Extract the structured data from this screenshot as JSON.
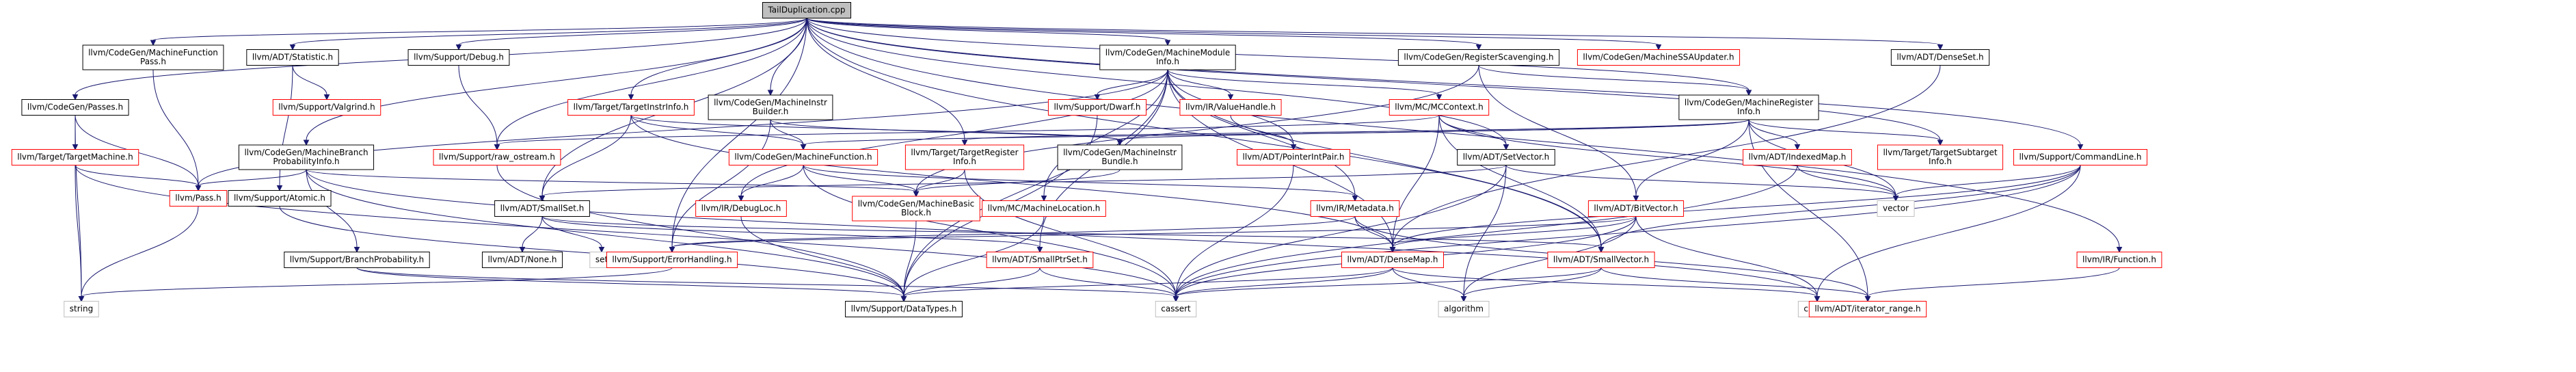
{
  "diagram": {
    "title": "TailDuplication.cpp include dependency graph",
    "colors": {
      "edge": "#191970",
      "root_fill": "#bfbfbf",
      "node_fill": "#ffffff",
      "node_border": "#000000",
      "truncated_border": "#ff0000",
      "leaf_border": "#bfbfbf",
      "text": "#000000"
    },
    "nodes": [
      {
        "id": "root",
        "lines": [
          "TailDuplication.cpp"
        ],
        "kind": "root"
      },
      {
        "id": "mfp",
        "lines": [
          "llvm/CodeGen/MachineFunction",
          "Pass.h"
        ],
        "kind": "normal"
      },
      {
        "id": "stat",
        "lines": [
          "llvm/ADT/Statistic.h"
        ],
        "kind": "normal"
      },
      {
        "id": "debug",
        "lines": [
          "llvm/Support/Debug.h"
        ],
        "kind": "normal"
      },
      {
        "id": "mmi",
        "lines": [
          "llvm/CodeGen/MachineModule",
          "Info.h"
        ],
        "kind": "normal"
      },
      {
        "id": "rs",
        "lines": [
          "llvm/CodeGen/RegisterScavenging.h"
        ],
        "kind": "normal"
      },
      {
        "id": "ssa",
        "lines": [
          "llvm/CodeGen/MachineSSAUpdater.h"
        ],
        "kind": "truncated"
      },
      {
        "id": "denseset",
        "lines": [
          "llvm/ADT/DenseSet.h"
        ],
        "kind": "normal"
      },
      {
        "id": "passes",
        "lines": [
          "llvm/CodeGen/Passes.h"
        ],
        "kind": "normal"
      },
      {
        "id": "valgrind",
        "lines": [
          "llvm/Support/Valgrind.h"
        ],
        "kind": "truncated"
      },
      {
        "id": "tii",
        "lines": [
          "llvm/Target/TargetInstrInfo.h"
        ],
        "kind": "truncated"
      },
      {
        "id": "mib",
        "lines": [
          "llvm/CodeGen/MachineInstr",
          "Builder.h"
        ],
        "kind": "normal"
      },
      {
        "id": "dwarf",
        "lines": [
          "llvm/Support/Dwarf.h"
        ],
        "kind": "truncated"
      },
      {
        "id": "valuehandle",
        "lines": [
          "llvm/IR/ValueHandle.h"
        ],
        "kind": "truncated"
      },
      {
        "id": "mccontext",
        "lines": [
          "llvm/MC/MCContext.h"
        ],
        "kind": "truncated"
      },
      {
        "id": "mri",
        "lines": [
          "llvm/CodeGen/MachineRegister",
          "Info.h"
        ],
        "kind": "normal"
      },
      {
        "id": "tm",
        "lines": [
          "llvm/Target/TargetMachine.h"
        ],
        "kind": "truncated"
      },
      {
        "id": "mbpi",
        "lines": [
          "llvm/CodeGen/MachineBranch",
          "ProbabilityInfo.h"
        ],
        "kind": "normal"
      },
      {
        "id": "rawos",
        "lines": [
          "llvm/Support/raw_ostream.h"
        ],
        "kind": "truncated"
      },
      {
        "id": "mf",
        "lines": [
          "llvm/CodeGen/MachineFunction.h"
        ],
        "kind": "truncated"
      },
      {
        "id": "tri",
        "lines": [
          "llvm/Target/TargetRegister",
          "Info.h"
        ],
        "kind": "truncated"
      },
      {
        "id": "mibundle",
        "lines": [
          "llvm/CodeGen/MachineInstr",
          "Bundle.h"
        ],
        "kind": "normal"
      },
      {
        "id": "pip",
        "lines": [
          "llvm/ADT/PointerIntPair.h"
        ],
        "kind": "truncated"
      },
      {
        "id": "setvector",
        "lines": [
          "llvm/ADT/SetVector.h"
        ],
        "kind": "normal"
      },
      {
        "id": "indexedmap",
        "lines": [
          "llvm/ADT/IndexedMap.h"
        ],
        "kind": "truncated"
      },
      {
        "id": "tsi",
        "lines": [
          "llvm/Target/TargetSubtarget",
          "Info.h"
        ],
        "kind": "truncated"
      },
      {
        "id": "cmdline",
        "lines": [
          "llvm/Support/CommandLine.h"
        ],
        "kind": "truncated"
      },
      {
        "id": "pass",
        "lines": [
          "llvm/Pass.h"
        ],
        "kind": "truncated"
      },
      {
        "id": "atomic",
        "lines": [
          "llvm/Support/Atomic.h"
        ],
        "kind": "normal"
      },
      {
        "id": "smallset",
        "lines": [
          "llvm/ADT/SmallSet.h"
        ],
        "kind": "normal"
      },
      {
        "id": "debugloc",
        "lines": [
          "llvm/IR/DebugLoc.h"
        ],
        "kind": "truncated"
      },
      {
        "id": "mbb",
        "lines": [
          "llvm/CodeGen/MachineBasic",
          "Block.h"
        ],
        "kind": "truncated"
      },
      {
        "id": "mloc",
        "lines": [
          "llvm/MC/MachineLocation.h"
        ],
        "kind": "truncated"
      },
      {
        "id": "metadata",
        "lines": [
          "llvm/IR/Metadata.h"
        ],
        "kind": "truncated"
      },
      {
        "id": "bitvector",
        "lines": [
          "llvm/ADT/BitVector.h"
        ],
        "kind": "truncated"
      },
      {
        "id": "vector",
        "lines": [
          "vector"
        ],
        "kind": "leaf"
      },
      {
        "id": "bp",
        "lines": [
          "llvm/Support/BranchProbability.h"
        ],
        "kind": "normal"
      },
      {
        "id": "none",
        "lines": [
          "llvm/ADT/None.h"
        ],
        "kind": "normal"
      },
      {
        "id": "set",
        "lines": [
          "set"
        ],
        "kind": "leaf"
      },
      {
        "id": "errh",
        "lines": [
          "llvm/Support/ErrorHandling.h"
        ],
        "kind": "truncated"
      },
      {
        "id": "sps",
        "lines": [
          "llvm/ADT/SmallPtrSet.h"
        ],
        "kind": "truncated"
      },
      {
        "id": "densemap",
        "lines": [
          "llvm/ADT/DenseMap.h"
        ],
        "kind": "truncated"
      },
      {
        "id": "smallvector",
        "lines": [
          "llvm/ADT/SmallVector.h"
        ],
        "kind": "truncated"
      },
      {
        "id": "function",
        "lines": [
          "llvm/IR/Function.h"
        ],
        "kind": "truncated"
      },
      {
        "id": "string",
        "lines": [
          "string"
        ],
        "kind": "leaf"
      },
      {
        "id": "datatypes",
        "lines": [
          "llvm/Support/DataTypes.h"
        ],
        "kind": "normal"
      },
      {
        "id": "cassert",
        "lines": [
          "cassert"
        ],
        "kind": "leaf"
      },
      {
        "id": "algorithm",
        "lines": [
          "algorithm"
        ],
        "kind": "leaf"
      },
      {
        "id": "climits",
        "lines": [
          "climits"
        ],
        "kind": "leaf"
      },
      {
        "id": "iterrange",
        "lines": [
          "llvm/ADT/iterator_range.h"
        ],
        "kind": "truncated"
      }
    ],
    "edges": [
      [
        "root",
        "mfp"
      ],
      [
        "root",
        "stat"
      ],
      [
        "root",
        "debug"
      ],
      [
        "root",
        "mmi"
      ],
      [
        "root",
        "rs"
      ],
      [
        "root",
        "ssa"
      ],
      [
        "root",
        "denseset"
      ],
      [
        "root",
        "passes"
      ],
      [
        "root",
        "tii"
      ],
      [
        "root",
        "mib"
      ],
      [
        "root",
        "mri"
      ],
      [
        "root",
        "mbpi"
      ],
      [
        "root",
        "rawos"
      ],
      [
        "root",
        "tri"
      ],
      [
        "root",
        "setvector"
      ],
      [
        "root",
        "smallset"
      ],
      [
        "root",
        "tsi"
      ],
      [
        "root",
        "cmdline"
      ],
      [
        "root",
        "function"
      ],
      [
        "root",
        "errh"
      ],
      [
        "root",
        "smallvector"
      ],
      [
        "mfp",
        "pass"
      ],
      [
        "stat",
        "valgrind"
      ],
      [
        "stat",
        "atomic"
      ],
      [
        "debug",
        "rawos"
      ],
      [
        "mmi",
        "pass"
      ],
      [
        "mmi",
        "dwarf"
      ],
      [
        "mmi",
        "valuehandle"
      ],
      [
        "mmi",
        "mccontext"
      ],
      [
        "mmi",
        "pip"
      ],
      [
        "mmi",
        "metadata"
      ],
      [
        "mmi",
        "debugloc"
      ],
      [
        "mmi",
        "mloc"
      ],
      [
        "mmi",
        "sps"
      ],
      [
        "mmi",
        "densemap"
      ],
      [
        "mmi",
        "smallvector"
      ],
      [
        "mmi",
        "datatypes"
      ],
      [
        "rs",
        "mri"
      ],
      [
        "rs",
        "bitvector"
      ],
      [
        "rs",
        "mbb"
      ],
      [
        "denseset",
        "densemap"
      ],
      [
        "passes",
        "pass"
      ],
      [
        "passes",
        "tm"
      ],
      [
        "passes",
        "string"
      ],
      [
        "tii",
        "mf"
      ],
      [
        "tii",
        "smallset"
      ],
      [
        "tii",
        "mibundle"
      ],
      [
        "tii",
        "densemap"
      ],
      [
        "mib",
        "mf"
      ],
      [
        "mib",
        "mibundle"
      ],
      [
        "mib",
        "errh"
      ],
      [
        "dwarf",
        "datatypes"
      ],
      [
        "valuehandle",
        "pip"
      ],
      [
        "mccontext",
        "setvector"
      ],
      [
        "mccontext",
        "densemap"
      ],
      [
        "mccontext",
        "smallvector"
      ],
      [
        "mccontext",
        "vector"
      ],
      [
        "mccontext",
        "rawos"
      ],
      [
        "mri",
        "mf"
      ],
      [
        "mri",
        "tri"
      ],
      [
        "mri",
        "indexedmap"
      ],
      [
        "mri",
        "bitvector"
      ],
      [
        "mri",
        "tsi"
      ],
      [
        "mri",
        "vector"
      ],
      [
        "mri",
        "iterrange"
      ],
      [
        "mri",
        "mibundle"
      ],
      [
        "tm",
        "pass"
      ],
      [
        "tm",
        "string"
      ],
      [
        "tm",
        "cassert"
      ],
      [
        "mbpi",
        "pass"
      ],
      [
        "mbpi",
        "mbb"
      ],
      [
        "mbpi",
        "bp"
      ],
      [
        "mbpi",
        "climits"
      ],
      [
        "mbpi",
        "datatypes"
      ],
      [
        "rawos",
        "datatypes"
      ],
      [
        "mf",
        "mbb"
      ],
      [
        "mf",
        "debugloc"
      ],
      [
        "mf",
        "metadata"
      ],
      [
        "mf",
        "cassert"
      ],
      [
        "tri",
        "mbb"
      ],
      [
        "tri",
        "cassert"
      ],
      [
        "mibundle",
        "mbb"
      ],
      [
        "pip",
        "cassert"
      ],
      [
        "setvector",
        "smallset"
      ],
      [
        "setvector",
        "algorithm"
      ],
      [
        "setvector",
        "cassert"
      ],
      [
        "setvector",
        "vector"
      ],
      [
        "indexedmap",
        "vector"
      ],
      [
        "indexedmap",
        "cassert"
      ],
      [
        "cmdline",
        "smallvector"
      ],
      [
        "cmdline",
        "climits"
      ],
      [
        "cmdline",
        "cassert"
      ],
      [
        "cmdline",
        "vector"
      ],
      [
        "cmdline",
        "densemap"
      ],
      [
        "pass",
        "string"
      ],
      [
        "atomic",
        "datatypes"
      ],
      [
        "smallset",
        "none"
      ],
      [
        "smallset",
        "set"
      ],
      [
        "smallset",
        "sps"
      ],
      [
        "smallset",
        "smallvector"
      ],
      [
        "debugloc",
        "datatypes"
      ],
      [
        "mbb",
        "datatypes"
      ],
      [
        "mloc",
        "datatypes"
      ],
      [
        "metadata",
        "densemap"
      ],
      [
        "metadata",
        "errh"
      ],
      [
        "metadata",
        "iterrange"
      ],
      [
        "bitvector",
        "densemap"
      ],
      [
        "bitvector",
        "cassert"
      ],
      [
        "bitvector",
        "algorithm"
      ],
      [
        "bitvector",
        "climits"
      ],
      [
        "bitvector",
        "errh"
      ],
      [
        "bp",
        "datatypes"
      ],
      [
        "bp",
        "cassert"
      ],
      [
        "errh",
        "string"
      ],
      [
        "sps",
        "cassert"
      ],
      [
        "sps",
        "datatypes"
      ],
      [
        "densemap",
        "cassert"
      ],
      [
        "densemap",
        "algorithm"
      ],
      [
        "densemap",
        "climits"
      ],
      [
        "densemap",
        "datatypes"
      ],
      [
        "smallvector",
        "algorithm"
      ],
      [
        "smallvector",
        "cassert"
      ],
      [
        "smallvector",
        "iterrange"
      ],
      [
        "function",
        "iterrange"
      ]
    ]
  }
}
